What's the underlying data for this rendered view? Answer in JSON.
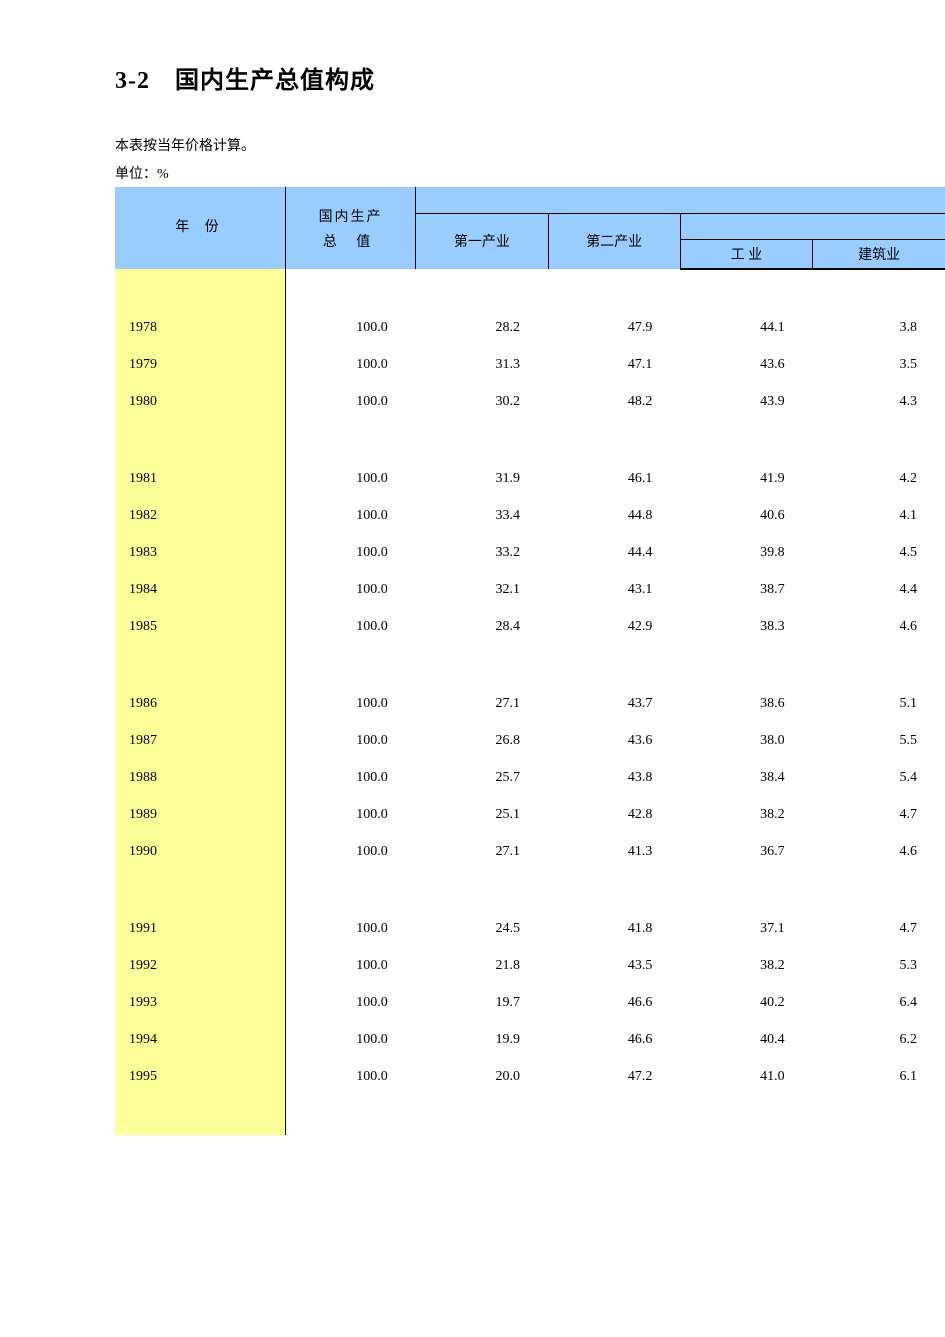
{
  "title": "3-2　国内生产总值构成",
  "note": "本表按当年价格计算。",
  "unit": "单位：%",
  "header": {
    "year": "年 份",
    "gdp_l1": "国内生产",
    "gdp_l2": "总 值",
    "primary": "第一产业",
    "secondary": "第二产业",
    "industry": "工 业",
    "construction": "建筑业"
  },
  "colors": {
    "header_bg": "#99ccff",
    "year_bg": "#ffff99",
    "border": "#000000",
    "page_bg": "#ffffff"
  },
  "groups": [
    {
      "rows": [
        {
          "year": "1978",
          "gdp": "100.0",
          "primary": "28.2",
          "secondary": "47.9",
          "industry": "44.1",
          "construction": "3.8"
        },
        {
          "year": "1979",
          "gdp": "100.0",
          "primary": "31.3",
          "secondary": "47.1",
          "industry": "43.6",
          "construction": "3.5"
        },
        {
          "year": "1980",
          "gdp": "100.0",
          "primary": "30.2",
          "secondary": "48.2",
          "industry": "43.9",
          "construction": "4.3"
        }
      ]
    },
    {
      "rows": [
        {
          "year": "1981",
          "gdp": "100.0",
          "primary": "31.9",
          "secondary": "46.1",
          "industry": "41.9",
          "construction": "4.2"
        },
        {
          "year": "1982",
          "gdp": "100.0",
          "primary": "33.4",
          "secondary": "44.8",
          "industry": "40.6",
          "construction": "4.1"
        },
        {
          "year": "1983",
          "gdp": "100.0",
          "primary": "33.2",
          "secondary": "44.4",
          "industry": "39.8",
          "construction": "4.5"
        },
        {
          "year": "1984",
          "gdp": "100.0",
          "primary": "32.1",
          "secondary": "43.1",
          "industry": "38.7",
          "construction": "4.4"
        },
        {
          "year": "1985",
          "gdp": "100.0",
          "primary": "28.4",
          "secondary": "42.9",
          "industry": "38.3",
          "construction": "4.6"
        }
      ]
    },
    {
      "rows": [
        {
          "year": "1986",
          "gdp": "100.0",
          "primary": "27.1",
          "secondary": "43.7",
          "industry": "38.6",
          "construction": "5.1"
        },
        {
          "year": "1987",
          "gdp": "100.0",
          "primary": "26.8",
          "secondary": "43.6",
          "industry": "38.0",
          "construction": "5.5"
        },
        {
          "year": "1988",
          "gdp": "100.0",
          "primary": "25.7",
          "secondary": "43.8",
          "industry": "38.4",
          "construction": "5.4"
        },
        {
          "year": "1989",
          "gdp": "100.0",
          "primary": "25.1",
          "secondary": "42.8",
          "industry": "38.2",
          "construction": "4.7"
        },
        {
          "year": "1990",
          "gdp": "100.0",
          "primary": "27.1",
          "secondary": "41.3",
          "industry": "36.7",
          "construction": "4.6"
        }
      ]
    },
    {
      "rows": [
        {
          "year": "1991",
          "gdp": "100.0",
          "primary": "24.5",
          "secondary": "41.8",
          "industry": "37.1",
          "construction": "4.7"
        },
        {
          "year": "1992",
          "gdp": "100.0",
          "primary": "21.8",
          "secondary": "43.5",
          "industry": "38.2",
          "construction": "5.3"
        },
        {
          "year": "1993",
          "gdp": "100.0",
          "primary": "19.7",
          "secondary": "46.6",
          "industry": "40.2",
          "construction": "6.4"
        },
        {
          "year": "1994",
          "gdp": "100.0",
          "primary": "19.9",
          "secondary": "46.6",
          "industry": "40.4",
          "construction": "6.2"
        },
        {
          "year": "1995",
          "gdp": "100.0",
          "primary": "20.0",
          "secondary": "47.2",
          "industry": "41.0",
          "construction": "6.1"
        }
      ]
    }
  ]
}
